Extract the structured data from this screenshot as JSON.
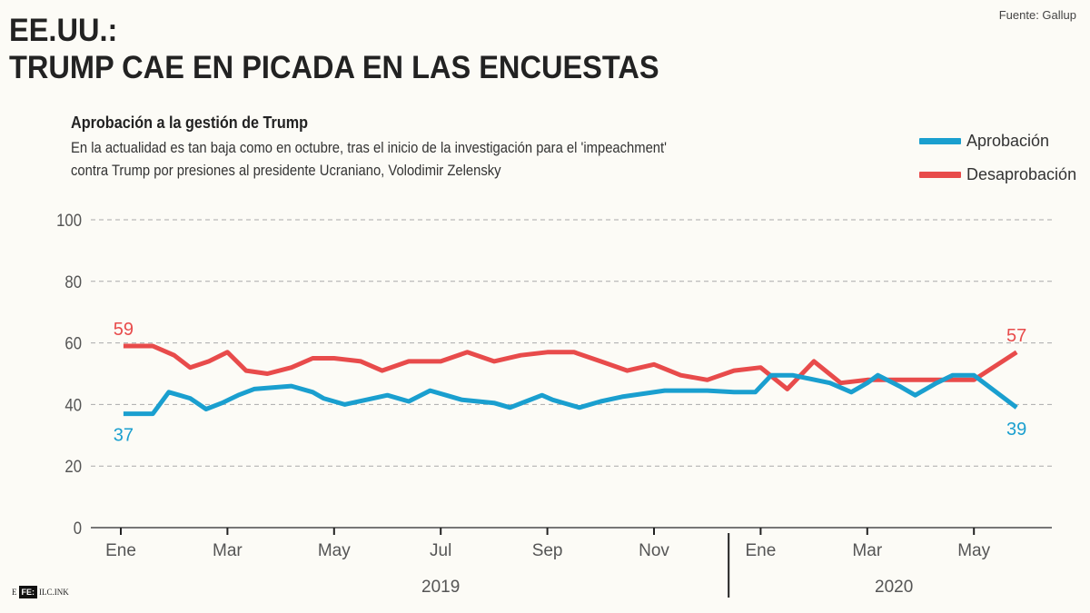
{
  "header": {
    "title_line1": "EE.UU.:",
    "title_line2": "TRUMP CAE EN PICADA EN LAS ENCUESTAS",
    "source": "Fuente: Gallup",
    "subtitle": "Aprobación a la gestión de Trump",
    "description": "En la actualidad es tan baja como en octubre, tras el inicio de la investigación para el 'impeachment' contra Trump por presiones al presidente Ucraniano, Volodimir Zelensky"
  },
  "logo": {
    "prefix": "E",
    "box": "FE:",
    "suffix": "ILC.INK"
  },
  "colors": {
    "aprobacion": "#1a9fcf",
    "desaprobacion": "#e84b4b",
    "grid": "#aaaaaa",
    "axis": "#777777",
    "text": "#444444"
  },
  "chart_data": {
    "type": "line",
    "title": "Aprobación a la gestión de Trump",
    "xlabel": "",
    "ylabel": "",
    "ylim": [
      0,
      100
    ],
    "yticks": [
      0,
      20,
      40,
      60,
      80,
      100
    ],
    "grid": true,
    "legend_position": "top-right",
    "x_range_months": [
      0,
      17.5
    ],
    "xticks": [
      {
        "month": 0,
        "label": "Ene"
      },
      {
        "month": 2,
        "label": "Mar"
      },
      {
        "month": 4,
        "label": "May"
      },
      {
        "month": 6,
        "label": "Jul"
      },
      {
        "month": 8,
        "label": "Sep"
      },
      {
        "month": 10,
        "label": "Nov"
      },
      {
        "month": 12,
        "label": "Ene"
      },
      {
        "month": 14,
        "label": "Mar"
      },
      {
        "month": 16,
        "label": "May"
      }
    ],
    "year_labels": [
      {
        "label": "2019",
        "month": 6
      },
      {
        "label": "2020",
        "month": 14.5
      }
    ],
    "year_divider_month": 11.4,
    "series": [
      {
        "name": "Aprobación",
        "key": "aprobacion",
        "x": [
          0.05,
          0.4,
          0.6,
          0.9,
          1.1,
          1.3,
          1.6,
          1.9,
          2.2,
          2.5,
          2.85,
          3.2,
          3.6,
          3.8,
          4.2,
          4.6,
          5.0,
          5.4,
          5.8,
          6.1,
          6.4,
          6.7,
          7.0,
          7.3,
          7.6,
          7.9,
          8.1,
          8.4,
          8.6,
          9.0,
          9.4,
          9.8,
          10.2,
          10.6,
          11.0,
          11.5,
          11.9,
          12.2,
          12.6,
          13.3,
          13.7,
          14.0,
          14.2,
          14.6,
          14.9,
          15.3,
          15.6,
          16.0,
          16.8
        ],
        "values": [
          37,
          37,
          37,
          44,
          43,
          42,
          38.5,
          40.5,
          43,
          45,
          45.5,
          46,
          44,
          42,
          40,
          41.5,
          43,
          41,
          44.5,
          43,
          41.5,
          41,
          40.5,
          39,
          41,
          43,
          41.5,
          40,
          39,
          41,
          42.5,
          43.5,
          44.5,
          44.5,
          44.5,
          44,
          44,
          49.5,
          49.5,
          47,
          44,
          47,
          49.5,
          46,
          43,
          47,
          49.5,
          49.5,
          39
        ]
      },
      {
        "name": "Desaprobación",
        "key": "desaprobacion",
        "x": [
          0.05,
          0.4,
          0.6,
          1.0,
          1.3,
          1.65,
          2.0,
          2.35,
          2.75,
          3.2,
          3.6,
          4.0,
          4.5,
          4.9,
          5.4,
          6.0,
          6.5,
          7.0,
          7.5,
          8.0,
          8.5,
          9.0,
          9.5,
          10.0,
          10.5,
          11.0,
          11.5,
          12.0,
          12.5,
          13.0,
          13.5,
          14.0,
          14.5,
          15.0,
          15.5,
          16.0,
          16.8
        ],
        "values": [
          59,
          59,
          59,
          56,
          52,
          54,
          57,
          51,
          50,
          52,
          55,
          55,
          54,
          51,
          54,
          54,
          57,
          54,
          56,
          57,
          57,
          54,
          51,
          53,
          49.5,
          48,
          51,
          52,
          45,
          54,
          47,
          48,
          48,
          48,
          48,
          48,
          57
        ]
      }
    ],
    "annotations": [
      {
        "series": "desaprobacion",
        "position": "start",
        "label": "59"
      },
      {
        "series": "aprobacion",
        "position": "start",
        "label": "37"
      },
      {
        "series": "desaprobacion",
        "position": "end",
        "label": "57"
      },
      {
        "series": "aprobacion",
        "position": "end",
        "label": "39"
      }
    ]
  }
}
